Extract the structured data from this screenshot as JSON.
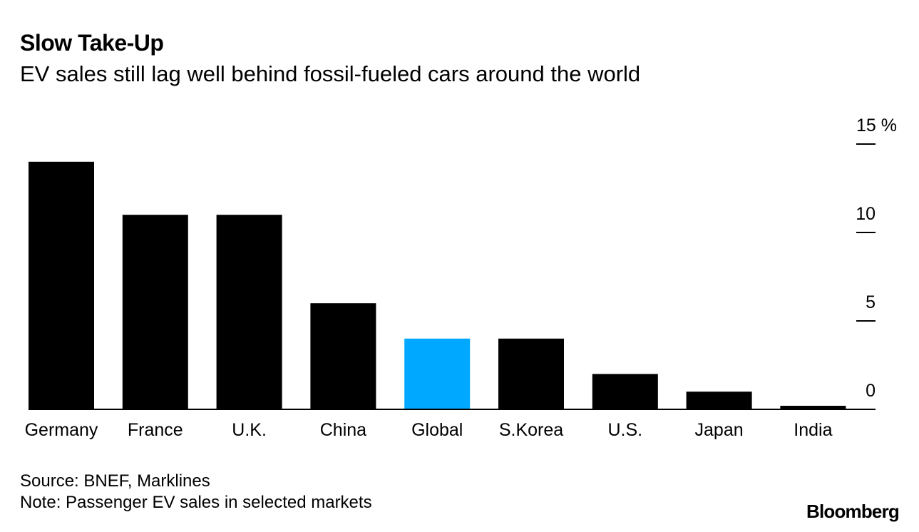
{
  "chart_data": {
    "type": "bar",
    "title": "Slow Take-Up",
    "subtitle": "EV sales still lag well behind fossil-fueled cars around the world",
    "categories": [
      "Germany",
      "France",
      "U.K.",
      "China",
      "Global",
      "S.Korea",
      "U.S.",
      "Japan",
      "India"
    ],
    "values": [
      14.0,
      11.0,
      11.0,
      6.0,
      4.0,
      4.0,
      2.0,
      1.0,
      0.2
    ],
    "highlight": "Global",
    "colors": {
      "bar": "#000000",
      "highlight": "#00a9ff",
      "axis": "#000000",
      "text": "#000000"
    },
    "ylim": [
      0,
      15
    ],
    "yticks": [
      {
        "value": 15,
        "label": "15 %"
      },
      {
        "value": 10,
        "label": "10"
      },
      {
        "value": 5,
        "label": "5"
      },
      {
        "value": 0,
        "label": "0"
      }
    ],
    "xlabel": "",
    "ylabel": "",
    "grid": false,
    "yaxis_side": "right"
  },
  "footer": {
    "source": "Source: BNEF, Marklines",
    "note": "Note: Passenger EV sales in selected markets",
    "brand": "Bloomberg"
  }
}
